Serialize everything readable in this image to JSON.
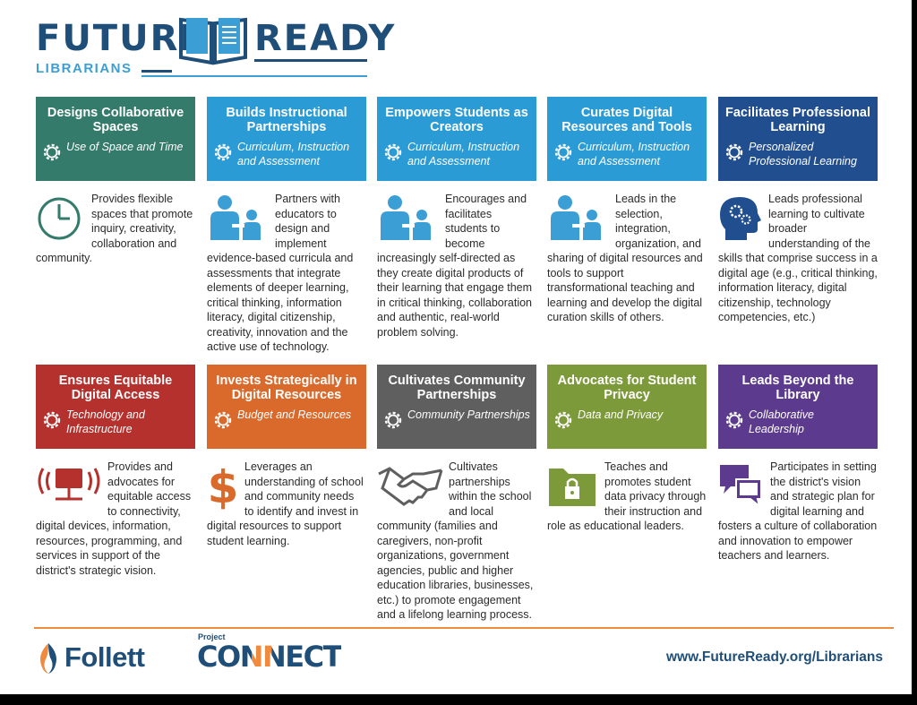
{
  "header": {
    "logo_word1": "FUTURE",
    "logo_word2": "READY",
    "logo_sub": "LIBRARIANS"
  },
  "colors": {
    "navy": "#1f4e79",
    "light_blue": "#3b9fd6",
    "green": "#347b6b",
    "blue": "#2b9bd6",
    "dark_blue": "#214e8f",
    "red": "#b5312d",
    "orange": "#d96a2b",
    "gray": "#5f5f5f",
    "olive": "#7d9a3a",
    "purple": "#5c3a8d",
    "icon_blue": "#3b9fd6"
  },
  "cards": [
    {
      "title": "Designs Collaborative Spaces",
      "subtitle": "Use of Space and Time",
      "body": "Provides flexible spaces that promote inquiry, creativity, collaboration and community.",
      "icon": "clock-icon"
    },
    {
      "title": "Builds Instructional Partnerships",
      "subtitle": "Curriculum, Instruction and Assessment",
      "body": "Partners with educators to design and implement evidence-based curricula and assessments that integrate elements of deeper learning, critical thinking, information literacy, digital citizenship, creativity, innovation and the active use of technology.",
      "icon": "teacher-student-icon"
    },
    {
      "title": "Empowers Students as Creators",
      "subtitle": "Curriculum, Instruction and Assessment",
      "body": "Encourages and facilitates students to become increasingly self-directed as they create digital products of their learning that engage them in critical thinking, collaboration and authentic, real-world problem solving.",
      "icon": "teacher-student-icon"
    },
    {
      "title": "Curates Digital Resources and Tools",
      "subtitle": "Curriculum, Instruction and Assessment",
      "body": "Leads in the selection, integration, organization, and sharing of digital resources and tools to support transformational teaching and learning and develop the digital curation skills of others.",
      "icon": "teacher-student-icon"
    },
    {
      "title": "Facilitates Professional Learning",
      "subtitle": "Personalized Professional Learning",
      "body": "Leads professional learning to cultivate broader understanding of the skills that comprise success in a digital age (e.g., critical thinking, information literacy, digital citizenship, technology competencies, etc.)",
      "icon": "head-gears-icon"
    },
    {
      "title": "Ensures Equitable Digital Access",
      "subtitle": "Technology and Infrastructure",
      "body": "Provides and advocates for equitable access to connectivity, digital devices, information, resources, programming, and services in support of the district's strategic vision.",
      "icon": "network-icon"
    },
    {
      "title": "Invests Strategically in Digital Resources",
      "subtitle": "Budget and Resources",
      "body": "Leverages an understanding of school and community needs to identify and invest in digital resources to support student learning.",
      "icon": "dollar-icon"
    },
    {
      "title": "Cultivates Community Partnerships",
      "subtitle": "Community Partnerships",
      "body": "Cultivates partnerships within the school and local community (families and caregivers, non-profit organizations, government agencies, public and higher education libraries, businesses, etc.) to promote engagement and a lifelong learning process.",
      "icon": "handshake-icon"
    },
    {
      "title": "Advocates for Student Privacy",
      "subtitle": "Data and Privacy",
      "body": "Teaches and promotes student data privacy through their instruction and role as educational leaders.",
      "icon": "locked-folder-icon"
    },
    {
      "title": "Leads Beyond the Library",
      "subtitle": "Collaborative Leadership",
      "body": "Participates in setting the district's vision and strategic plan for digital learning and fosters a culture of collaboration and innovation to empower teachers and learners.",
      "icon": "chat-bubbles-icon"
    }
  ],
  "footer": {
    "follett": "Follett",
    "project": "Project",
    "connect": "CONNECT",
    "url": "www.FutureReady.org/Librarians"
  }
}
